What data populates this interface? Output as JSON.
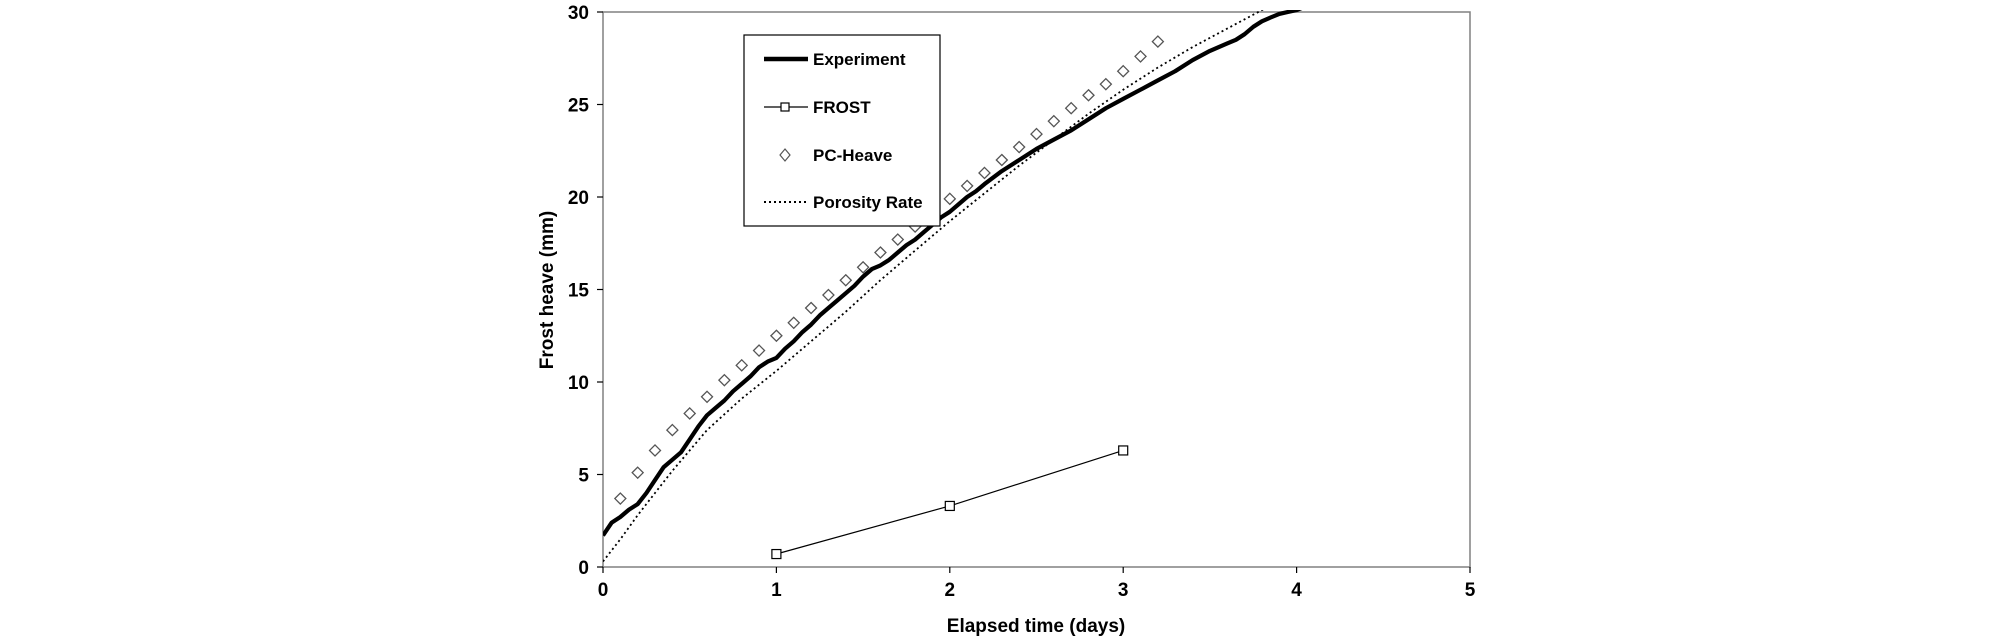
{
  "chart_data": {
    "type": "line",
    "title": "",
    "xlabel": "Elapsed time (days)",
    "ylabel": "Frost heave (mm)",
    "xlim": [
      0,
      5
    ],
    "ylim": [
      0,
      30
    ],
    "x_ticks": [
      0,
      1,
      2,
      3,
      4,
      5
    ],
    "y_ticks": [
      0,
      5,
      10,
      15,
      20,
      25,
      30
    ],
    "grid": false,
    "legend_position": "top-left",
    "series": [
      {
        "name": "Experiment",
        "style": "thick-solid",
        "color": "#000000",
        "x": [
          0.0,
          0.05,
          0.1,
          0.15,
          0.2,
          0.25,
          0.3,
          0.35,
          0.4,
          0.45,
          0.5,
          0.55,
          0.6,
          0.65,
          0.7,
          0.75,
          0.8,
          0.85,
          0.9,
          0.95,
          1.0,
          1.05,
          1.1,
          1.15,
          1.2,
          1.25,
          1.3,
          1.35,
          1.4,
          1.45,
          1.5,
          1.55,
          1.6,
          1.65,
          1.7,
          1.75,
          1.8,
          1.85,
          1.9,
          1.95,
          2.0,
          2.05,
          2.1,
          2.15,
          2.2,
          2.3,
          2.4,
          2.5,
          2.6,
          2.7,
          2.8,
          2.9,
          3.0,
          3.1,
          3.2,
          3.3,
          3.4,
          3.5,
          3.6,
          3.65,
          3.7,
          3.75,
          3.8,
          3.85,
          3.9,
          3.95,
          4.0,
          4.05,
          4.1
        ],
        "y": [
          1.7,
          2.4,
          2.7,
          3.1,
          3.4,
          4.0,
          4.7,
          5.4,
          5.8,
          6.2,
          6.9,
          7.6,
          8.2,
          8.6,
          9.0,
          9.5,
          9.9,
          10.3,
          10.8,
          11.1,
          11.3,
          11.8,
          12.2,
          12.7,
          13.1,
          13.6,
          14.0,
          14.4,
          14.8,
          15.2,
          15.7,
          16.1,
          16.3,
          16.6,
          17.0,
          17.4,
          17.7,
          18.1,
          18.5,
          18.9,
          19.2,
          19.6,
          20.0,
          20.3,
          20.7,
          21.4,
          22.0,
          22.6,
          23.1,
          23.6,
          24.2,
          24.8,
          25.3,
          25.8,
          26.3,
          26.8,
          27.4,
          27.9,
          28.3,
          28.5,
          28.8,
          29.2,
          29.5,
          29.7,
          29.9,
          30.0,
          30.1,
          30.3,
          30.5
        ]
      },
      {
        "name": "FROST",
        "style": "thin-solid-square-markers",
        "color": "#000000",
        "x": [
          1,
          2,
          3
        ],
        "y": [
          0.7,
          3.3,
          6.3
        ]
      },
      {
        "name": "PC-Heave",
        "style": "diamond-markers",
        "color": "#000000",
        "x": [
          0.1,
          0.2,
          0.3,
          0.4,
          0.5,
          0.6,
          0.7,
          0.8,
          0.9,
          1.0,
          1.1,
          1.2,
          1.3,
          1.4,
          1.5,
          1.6,
          1.7,
          1.8,
          1.9,
          2.0,
          2.1,
          2.2,
          2.3,
          2.4,
          2.5,
          2.6,
          2.7,
          2.8,
          2.9,
          3.0,
          3.1,
          3.2
        ],
        "y": [
          3.7,
          5.1,
          6.3,
          7.4,
          8.3,
          9.2,
          10.1,
          10.9,
          11.7,
          12.5,
          13.2,
          14.0,
          14.7,
          15.5,
          16.2,
          17.0,
          17.7,
          18.4,
          19.2,
          19.9,
          20.6,
          21.3,
          22.0,
          22.7,
          23.4,
          24.1,
          24.8,
          25.5,
          26.1,
          26.8,
          27.6,
          28.4
        ]
      },
      {
        "name": "Porosity Rate",
        "style": "dotted",
        "color": "#000000",
        "x": [
          0.0,
          0.1,
          0.2,
          0.3,
          0.4,
          0.5,
          0.6,
          0.8,
          1.0,
          1.2,
          1.4,
          1.6,
          1.8,
          2.0,
          2.2,
          2.4,
          2.6,
          2.8,
          3.0,
          3.2,
          3.4,
          3.6,
          3.8,
          4.0
        ],
        "y": [
          0.3,
          1.5,
          2.8,
          4.0,
          5.2,
          6.3,
          7.4,
          9.1,
          10.6,
          12.2,
          13.8,
          15.5,
          17.1,
          18.7,
          20.2,
          21.7,
          23.1,
          24.5,
          25.8,
          27.0,
          28.1,
          29.1,
          30.1,
          31.1
        ]
      }
    ]
  }
}
